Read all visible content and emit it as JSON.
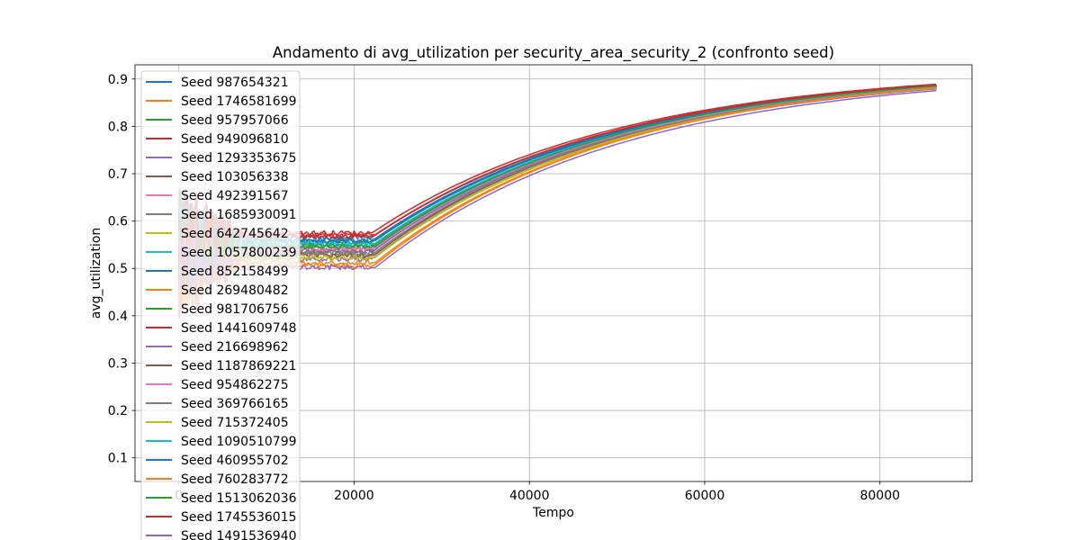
{
  "chart_data": {
    "type": "line",
    "title": "Andamento di avg_utilization per security_area_security_2 (confronto seed)",
    "xlabel": "Tempo",
    "ylabel": "avg_utilization",
    "xlim": [
      -5000,
      90500
    ],
    "ylim": [
      0.05,
      0.93
    ],
    "xticks": [
      0,
      20000,
      40000,
      60000,
      80000
    ],
    "xtick_labels": [
      "0",
      "20000",
      "40000",
      "60000",
      "80000"
    ],
    "yticks": [
      0.1,
      0.2,
      0.3,
      0.4,
      0.5,
      0.6,
      0.7,
      0.8,
      0.9
    ],
    "ytick_labels": [
      "0.1",
      "0.2",
      "0.3",
      "0.4",
      "0.5",
      "0.6",
      "0.7",
      "0.8",
      "0.9"
    ],
    "grid": true,
    "legend_position": "upper-left",
    "series": [
      {
        "name": "Seed 987654321",
        "color": "#1f77b4",
        "plateau": 0.565,
        "final": 0.885
      },
      {
        "name": "Seed 1746581699",
        "color": "#ff7f0e",
        "plateau": 0.54,
        "final": 0.884
      },
      {
        "name": "Seed 957957066",
        "color": "#2ca02c",
        "plateau": 0.555,
        "final": 0.887
      },
      {
        "name": "Seed 949096810",
        "color": "#d62728",
        "plateau": 0.575,
        "final": 0.889
      },
      {
        "name": "Seed 1293353675",
        "color": "#9467bd",
        "plateau": 0.52,
        "final": 0.879
      },
      {
        "name": "Seed 103056338",
        "color": "#8c564b",
        "plateau": 0.535,
        "final": 0.885
      },
      {
        "name": "Seed 492391567",
        "color": "#e377c2",
        "plateau": 0.545,
        "final": 0.884
      },
      {
        "name": "Seed 1685930091",
        "color": "#7f7f7f",
        "plateau": 0.53,
        "final": 0.882
      },
      {
        "name": "Seed 642745642",
        "color": "#bcbd22",
        "plateau": 0.525,
        "final": 0.881
      },
      {
        "name": "Seed 1057800239",
        "color": "#17becf",
        "plateau": 0.55,
        "final": 0.883
      },
      {
        "name": "Seed 852158499",
        "color": "#1f77b4",
        "plateau": 0.56,
        "final": 0.886
      },
      {
        "name": "Seed 269480482",
        "color": "#ff7f0e",
        "plateau": 0.505,
        "final": 0.882
      },
      {
        "name": "Seed 981706756",
        "color": "#2ca02c",
        "plateau": 0.548,
        "final": 0.886
      },
      {
        "name": "Seed 1441609748",
        "color": "#d62728",
        "plateau": 0.568,
        "final": 0.888
      },
      {
        "name": "Seed 216698962",
        "color": "#9467bd",
        "plateau": 0.538,
        "final": 0.881
      },
      {
        "name": "Seed 1187869221",
        "color": "#8c564b",
        "plateau": 0.528,
        "final": 0.883
      },
      {
        "name": "Seed 954862275",
        "color": "#e377c2",
        "plateau": 0.542,
        "final": 0.884
      },
      {
        "name": "Seed 369766165",
        "color": "#7f7f7f",
        "plateau": 0.533,
        "final": 0.882
      },
      {
        "name": "Seed 715372405",
        "color": "#bcbd22",
        "plateau": 0.522,
        "final": 0.881
      },
      {
        "name": "Seed 1090510799",
        "color": "#17becf",
        "plateau": 0.552,
        "final": 0.885
      },
      {
        "name": "Seed 460955702",
        "color": "#1f77b4",
        "plateau": 0.558,
        "final": 0.886
      },
      {
        "name": "Seed 760283772",
        "color": "#ff7f0e",
        "plateau": 0.512,
        "final": 0.882
      },
      {
        "name": "Seed 1513062036",
        "color": "#2ca02c",
        "plateau": 0.546,
        "final": 0.886
      },
      {
        "name": "Seed 1745536015",
        "color": "#d62728",
        "plateau": 0.571,
        "final": 0.888
      },
      {
        "name": "Seed 1491536940",
        "color": "#9467bd",
        "plateau": 0.502,
        "final": 0.876
      }
    ],
    "transition_x": 22000,
    "end_x": 86400
  }
}
